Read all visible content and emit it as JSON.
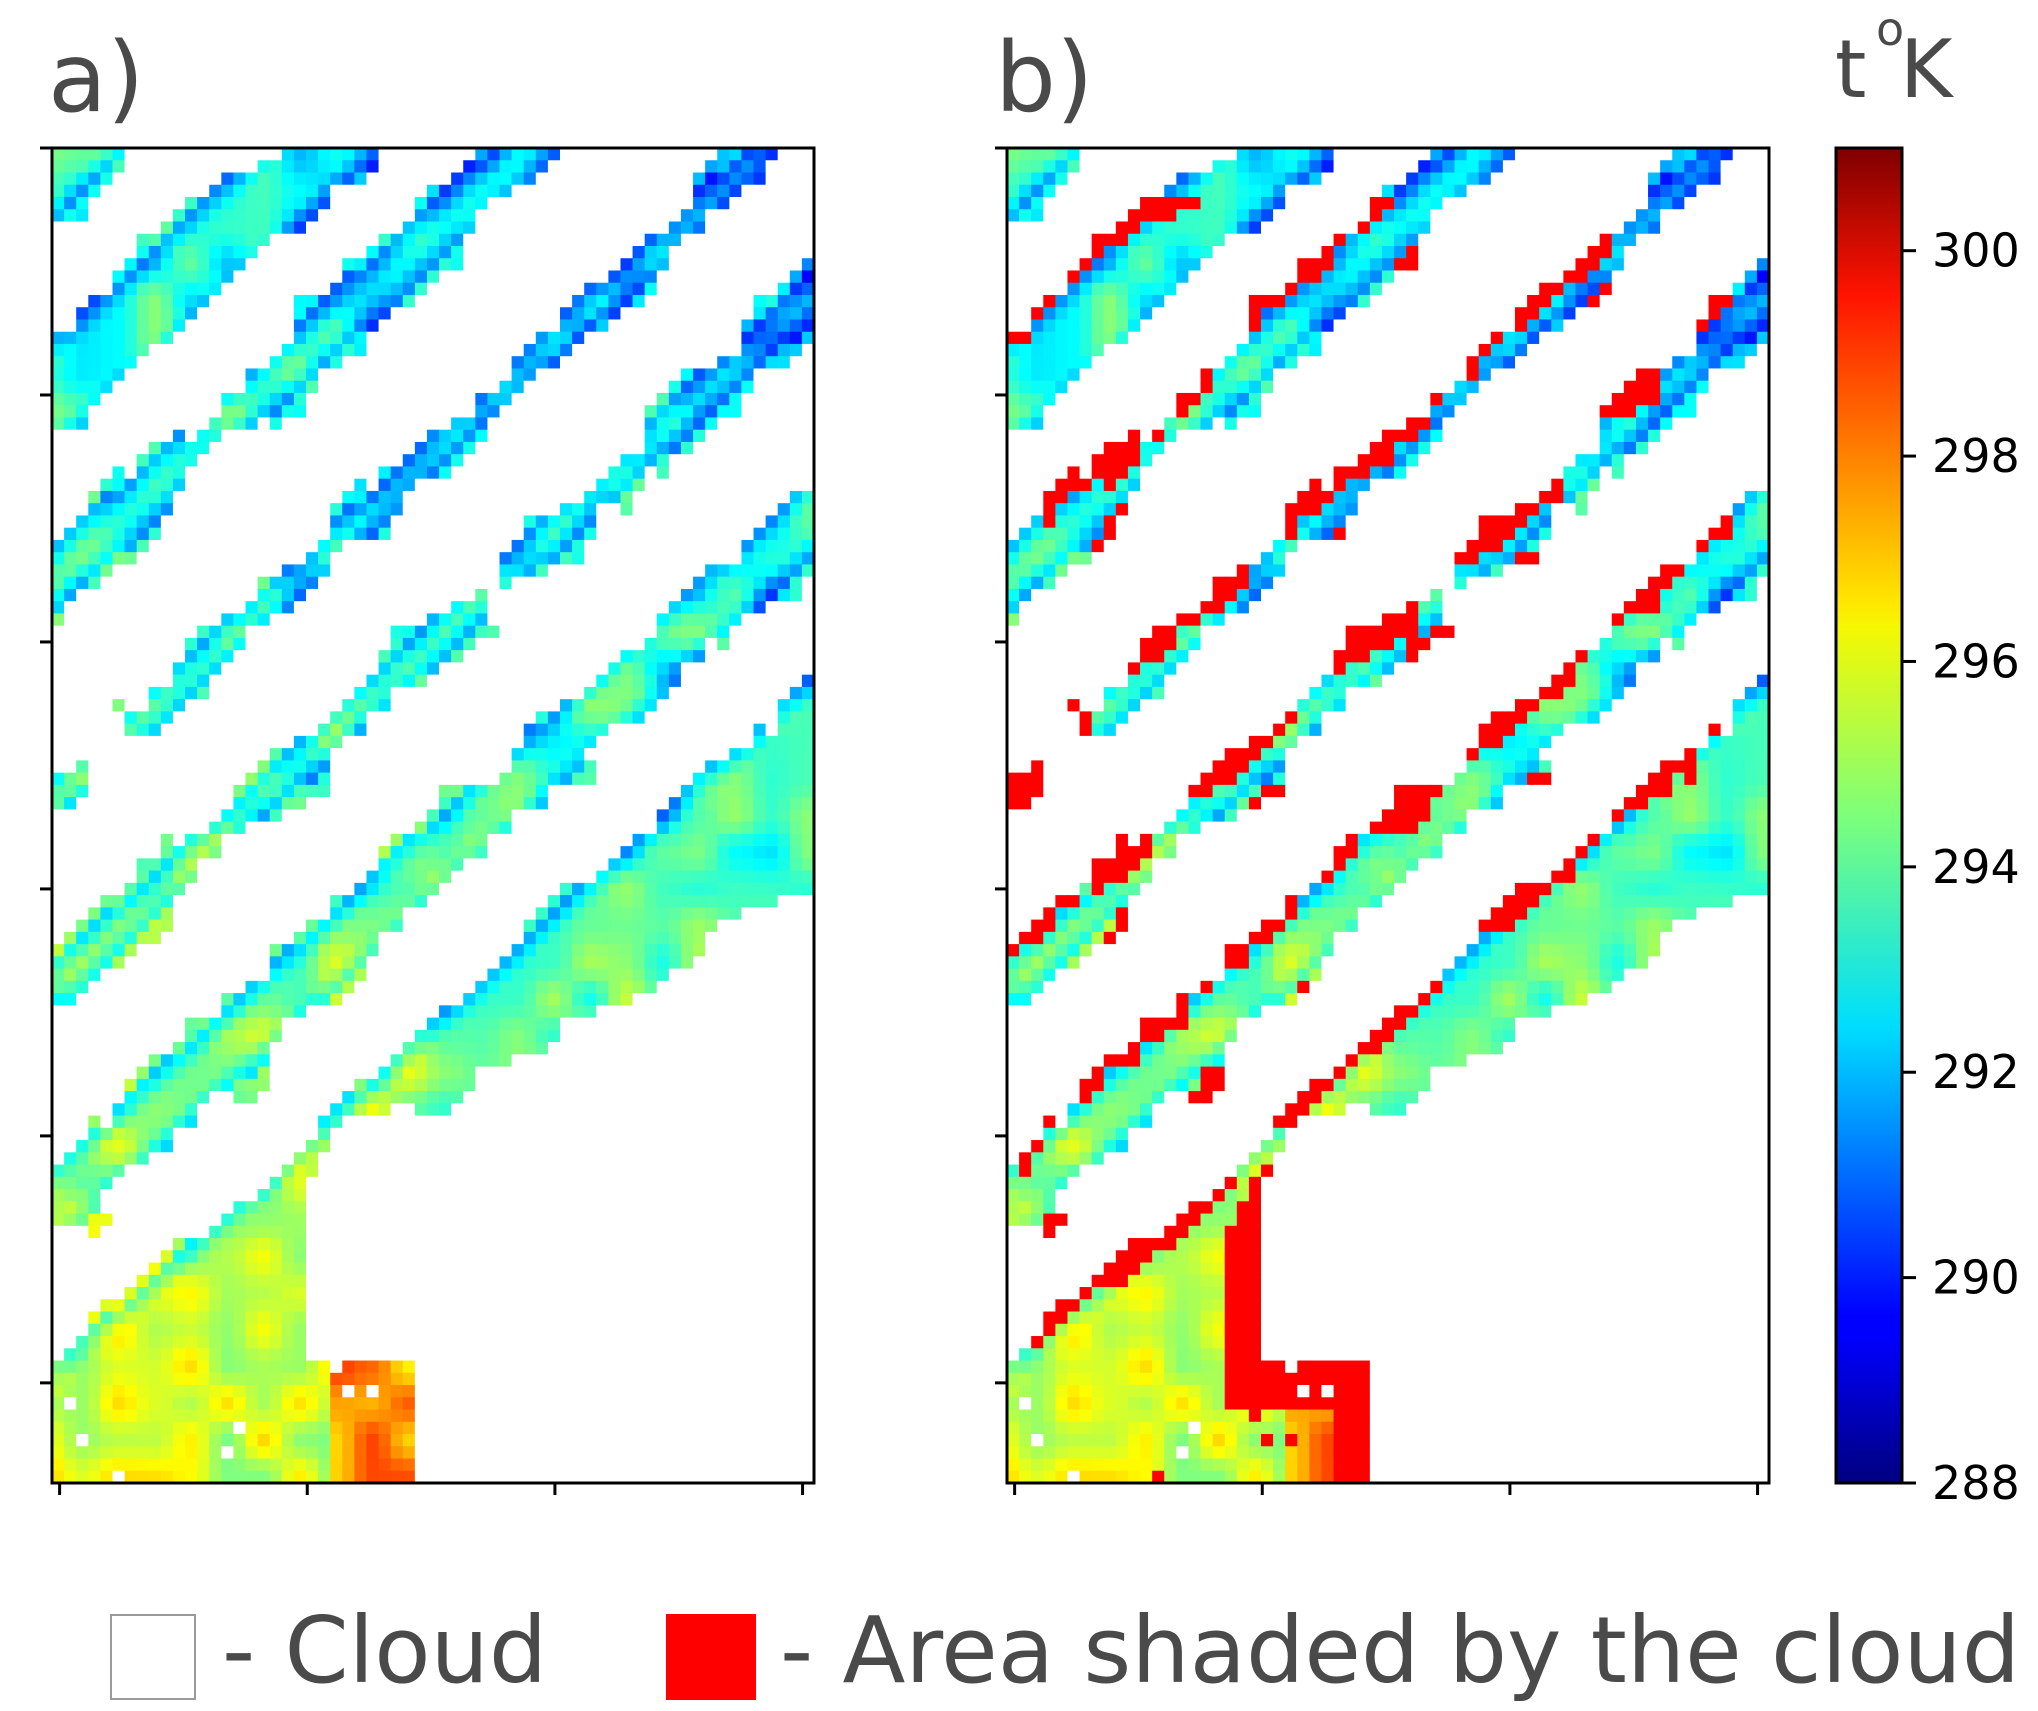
{
  "panels": [
    {
      "label": "a)"
    },
    {
      "label": "b)"
    }
  ],
  "colorbar": {
    "unit_prefix": "t",
    "unit_degree": "o",
    "unit_suffix": "K",
    "colormap": "jet",
    "range": [
      288,
      301
    ],
    "ticks": [
      "288",
      "290",
      "292",
      "294",
      "296",
      "298",
      "300"
    ]
  },
  "legend": {
    "cloud": {
      "text": "- Cloud",
      "color": "#ffffff"
    },
    "shaded": {
      "text": "- Area shaded by the cloud",
      "color": "#ff0000"
    }
  },
  "colors": {
    "text": "#4a4a4a",
    "shadow": "#ff0000",
    "cloud": "#ffffff"
  },
  "chart_data": [
    {
      "type": "heatmap",
      "panel": "a)",
      "grid": {
        "cols": 63,
        "rows": 109
      },
      "value_units": "K",
      "value_range": [
        288,
        301
      ],
      "colormap": "jet",
      "masked_value_meaning": "Cloud (white)",
      "description_of_field": "surface temperature raster with white cloud gaps along diagonal bands; cold (blue, ~289-291 K) pixels at cloud edges, warm (yellow-red, ~296-300 K) region in lower-left",
      "x_ticks_labels": false,
      "y_ticks_labels": false
    },
    {
      "type": "heatmap",
      "panel": "b)",
      "grid": {
        "cols": 63,
        "rows": 109
      },
      "value_units": "K",
      "value_range": [
        288,
        301
      ],
      "colormap": "jet",
      "masked_value_meaning": "Cloud (white)",
      "overlay": {
        "name": "Area shaded by the cloud",
        "color": "#ff0000"
      },
      "x_ticks_labels": false,
      "y_ticks_labels": false
    }
  ]
}
